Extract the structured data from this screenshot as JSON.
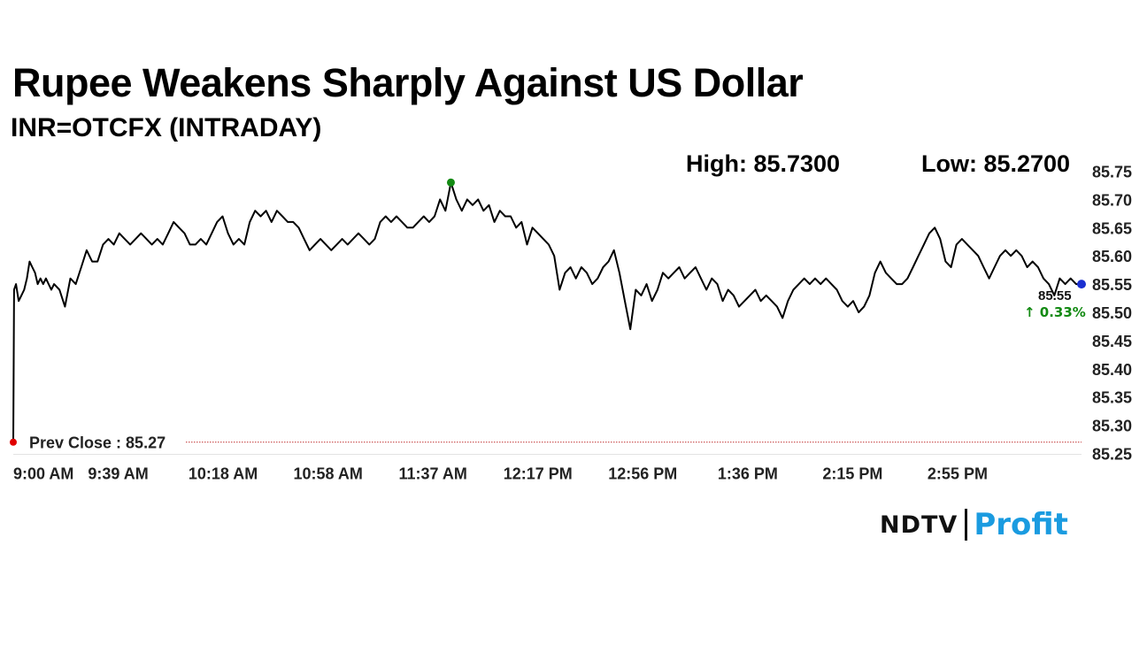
{
  "title": "Rupee Weakens Sharply Against US Dollar",
  "subtitle": "INR=OTCFX (INTRADAY)",
  "high_text": "High: 85.7300",
  "low_text": "Low: 85.2700",
  "brand": {
    "name_part1": "NDTV",
    "name_part2": "Profit",
    "accent_color": "#1a9be0"
  },
  "colors": {
    "line": "#000000",
    "prev_close_dot": "#e00000",
    "high_dot": "#138a13",
    "last_dot": "#1a2fd0",
    "change_positive": "#138a13",
    "prev_close_line": "#c03030"
  },
  "chart_data": {
    "type": "line",
    "title": "Rupee Weakens Sharply Against US Dollar",
    "subtitle": "INR=OTCFX (INTRADAY)",
    "xlabel": "",
    "ylabel": "",
    "ylim": [
      85.25,
      85.75
    ],
    "y_ticks": [
      "85.75",
      "85.70",
      "85.65",
      "85.60",
      "85.55",
      "85.50",
      "85.45",
      "85.40",
      "85.35",
      "85.30",
      "85.25"
    ],
    "x_tick_labels": [
      "9:00 AM",
      "9:39 AM",
      "10:18 AM",
      "10:58 AM",
      "11:37 AM",
      "12:17 PM",
      "12:56 PM",
      "1:36 PM",
      "2:15 PM",
      "2:55 PM"
    ],
    "prev_close": 85.27,
    "prev_close_label": "Prev Close : 85.27",
    "high": 85.73,
    "low": 85.27,
    "last_value_label": "85.55",
    "change_label": "0.33%",
    "change_arrow": "↑",
    "grid": false,
    "x_unit": "minutes after 9:00 AM",
    "series": [
      {
        "x": [
          0,
          0.3,
          1,
          2,
          3,
          4,
          5,
          6,
          7,
          8,
          9,
          10,
          11,
          12,
          13,
          14,
          15,
          17,
          19,
          21,
          23,
          25,
          27,
          29,
          31,
          33,
          35,
          37,
          39,
          41,
          43,
          45,
          47,
          49,
          51,
          53,
          55,
          57,
          59,
          61,
          63,
          65,
          67,
          69,
          71,
          73,
          75,
          77,
          79,
          81,
          83,
          85,
          87,
          89,
          91,
          93,
          95,
          97,
          99,
          101,
          103,
          105,
          107,
          109,
          111,
          113,
          115,
          117,
          119,
          121,
          123,
          125,
          127,
          129,
          131,
          133,
          135,
          137,
          139,
          141,
          143,
          145,
          147,
          149,
          151,
          153,
          155,
          157,
          159,
          161,
          163,
          165,
          167,
          169,
          171,
          173,
          175,
          177,
          179,
          181,
          183,
          185,
          187,
          189,
          191,
          193,
          195,
          197,
          199,
          201,
          203,
          205,
          207,
          209,
          211,
          213,
          215,
          217,
          219,
          221,
          223,
          225,
          227,
          229,
          231,
          233,
          235,
          237,
          239,
          241,
          243,
          245,
          247,
          249,
          251,
          253,
          255,
          257,
          259,
          261,
          263,
          265,
          267,
          269,
          271,
          273,
          275,
          277,
          279,
          281,
          283,
          285,
          287,
          289,
          291,
          293,
          295,
          297,
          299,
          301,
          303,
          305,
          307,
          309,
          311,
          313,
          315,
          317,
          319,
          321,
          323,
          325,
          327,
          329,
          331,
          333,
          335,
          337,
          339,
          341,
          343,
          345,
          347,
          349,
          351,
          353,
          355,
          357,
          359,
          361,
          363,
          365,
          367,
          369,
          371,
          373,
          375,
          377,
          379,
          381,
          383,
          385,
          387,
          389,
          391,
          393
        ],
        "values": [
          85.27,
          85.54,
          85.55,
          85.52,
          85.53,
          85.54,
          85.56,
          85.59,
          85.58,
          85.57,
          85.55,
          85.56,
          85.55,
          85.56,
          85.55,
          85.54,
          85.55,
          85.54,
          85.51,
          85.56,
          85.55,
          85.58,
          85.61,
          85.59,
          85.59,
          85.62,
          85.63,
          85.62,
          85.64,
          85.63,
          85.62,
          85.63,
          85.64,
          85.63,
          85.62,
          85.63,
          85.62,
          85.64,
          85.66,
          85.65,
          85.64,
          85.62,
          85.62,
          85.63,
          85.62,
          85.64,
          85.66,
          85.67,
          85.64,
          85.62,
          85.63,
          85.62,
          85.66,
          85.68,
          85.67,
          85.68,
          85.66,
          85.68,
          85.67,
          85.66,
          85.66,
          85.65,
          85.63,
          85.61,
          85.62,
          85.63,
          85.62,
          85.61,
          85.62,
          85.63,
          85.62,
          85.63,
          85.64,
          85.63,
          85.62,
          85.63,
          85.66,
          85.67,
          85.66,
          85.67,
          85.66,
          85.65,
          85.65,
          85.66,
          85.67,
          85.66,
          85.67,
          85.7,
          85.68,
          85.73,
          85.7,
          85.68,
          85.7,
          85.69,
          85.7,
          85.68,
          85.69,
          85.66,
          85.68,
          85.67,
          85.67,
          85.65,
          85.66,
          85.62,
          85.65,
          85.64,
          85.63,
          85.62,
          85.6,
          85.54,
          85.57,
          85.58,
          85.56,
          85.58,
          85.57,
          85.55,
          85.56,
          85.58,
          85.59,
          85.61,
          85.57,
          85.52,
          85.47,
          85.54,
          85.53,
          85.55,
          85.52,
          85.54,
          85.57,
          85.56,
          85.57,
          85.58,
          85.56,
          85.57,
          85.58,
          85.56,
          85.54,
          85.56,
          85.55,
          85.52,
          85.54,
          85.53,
          85.51,
          85.52,
          85.53,
          85.54,
          85.52,
          85.53,
          85.52,
          85.51,
          85.49,
          85.52,
          85.54,
          85.55,
          85.56,
          85.55,
          85.56,
          85.55,
          85.56,
          85.55,
          85.54,
          85.52,
          85.51,
          85.52,
          85.5,
          85.51,
          85.53,
          85.57,
          85.59,
          85.57,
          85.56,
          85.55,
          85.55,
          85.56,
          85.58,
          85.6,
          85.62,
          85.64,
          85.65,
          85.63,
          85.59,
          85.58,
          85.62,
          85.63,
          85.62,
          85.61,
          85.6,
          85.58,
          85.56,
          85.58,
          85.6,
          85.61,
          85.6,
          85.61,
          85.6,
          85.58,
          85.59,
          85.58,
          85.56,
          85.55,
          85.53,
          85.56,
          85.55,
          85.56,
          85.55,
          85.55
        ]
      }
    ]
  }
}
